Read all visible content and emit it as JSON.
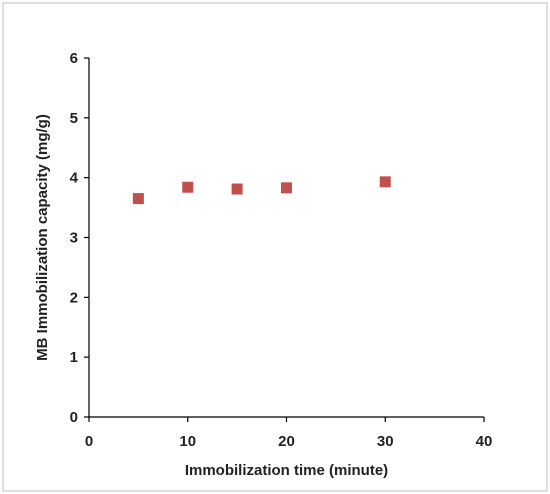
{
  "chart_data": {
    "type": "scatter",
    "title": "",
    "xlabel": "Immobilization time (minute)",
    "ylabel": "MB Immobilization capacity (mg/g)",
    "xlim": [
      0,
      40
    ],
    "ylim": [
      0,
      6
    ],
    "xticks": [
      "0",
      "10",
      "20",
      "30",
      "40"
    ],
    "yticks": [
      "0",
      "1",
      "2",
      "3",
      "4",
      "5",
      "6"
    ],
    "grid": false,
    "legend": "none",
    "series": [
      {
        "color": "#c0504d",
        "marker": "square",
        "points": [
          {
            "x": 5,
            "y": 3.65
          },
          {
            "x": 10,
            "y": 3.84
          },
          {
            "x": 15,
            "y": 3.81
          },
          {
            "x": 20,
            "y": 3.83
          },
          {
            "x": 30,
            "y": 3.93
          }
        ]
      }
    ]
  }
}
